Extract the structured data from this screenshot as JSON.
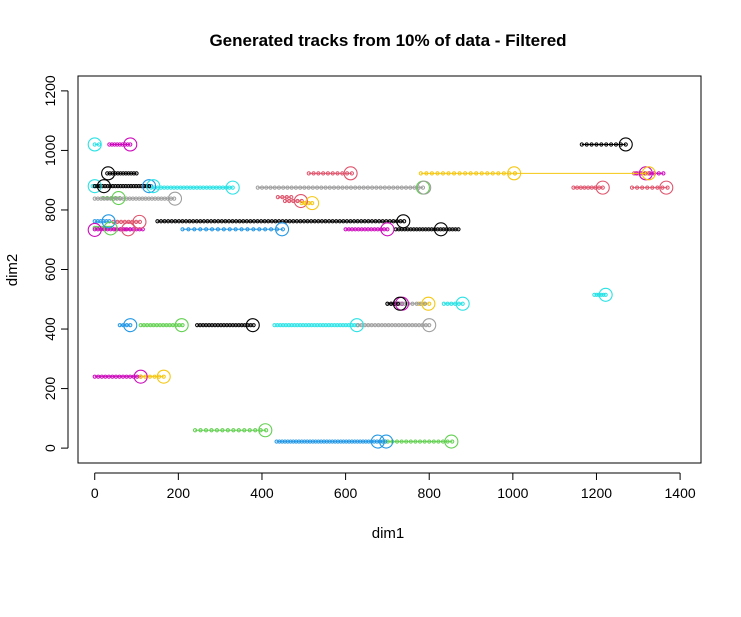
{
  "chart_data": {
    "type": "scatter",
    "title": "Generated tracks from 10% of data - Filtered",
    "xlabel": "dim1",
    "ylabel": "dim2",
    "xlim": [
      -40,
      1450
    ],
    "ylim": [
      -50,
      1250
    ],
    "xticks": [
      0,
      200,
      400,
      600,
      800,
      1000,
      1200,
      1400
    ],
    "yticks": [
      0,
      200,
      400,
      600,
      800,
      1000,
      1200
    ],
    "grid": false,
    "legend": "none",
    "tracks": [
      {
        "color": "#DF536B",
        "y": 923,
        "x": [
          512,
          615
        ],
        "n": 10
      },
      {
        "color": "#DF536B",
        "y": 843,
        "x": [
          438,
          470
        ],
        "n": 4
      },
      {
        "color": "#DF536B",
        "y": 830,
        "x": [
          455,
          495
        ],
        "n": 5
      },
      {
        "color": "#DF536B",
        "y": 875,
        "x": [
          1145,
          1215
        ],
        "n": 9
      },
      {
        "color": "#DF536B",
        "y": 875,
        "x": [
          1285,
          1370
        ],
        "n": 8
      },
      {
        "color": "#DF536B",
        "y": 923,
        "x": [
          1290,
          1325
        ],
        "n": 5
      },
      {
        "color": "#DF536B",
        "y": 760,
        "x": [
          45,
          108
        ],
        "n": 8
      },
      {
        "color": "#DF536B",
        "y": 735,
        "x": [
          50,
          85
        ],
        "n": 4
      },
      {
        "color": "#61D04F",
        "y": 60,
        "x": [
          240,
          410
        ],
        "n": 14
      },
      {
        "color": "#61D04F",
        "y": 22,
        "x": [
          690,
          855
        ],
        "n": 16
      },
      {
        "color": "#61D04F",
        "y": 413,
        "x": [
          110,
          210
        ],
        "n": 14
      },
      {
        "color": "#61D04F",
        "y": 740,
        "x": [
          0,
          40
        ],
        "n": 8
      },
      {
        "color": "#61D04F",
        "y": 840,
        "x": [
          20,
          60
        ],
        "n": 5
      },
      {
        "color": "#2297E6",
        "y": 22,
        "x": [
          435,
          695
        ],
        "n": 40
      },
      {
        "color": "#2297E6",
        "y": 735,
        "x": [
          210,
          450
        ],
        "n": 18
      },
      {
        "color": "#2297E6",
        "y": 762,
        "x": [
          0,
          35
        ],
        "n": 6
      },
      {
        "color": "#2297E6",
        "y": 413,
        "x": [
          60,
          85
        ],
        "n": 4
      },
      {
        "color": "#2297E6",
        "y": 880,
        "x": [
          118,
          135
        ],
        "n": 3
      },
      {
        "color": "#28E2E5",
        "y": 1020,
        "x": [
          0,
          10
        ],
        "n": 2
      },
      {
        "color": "#28E2E5",
        "y": 875,
        "x": [
          135,
          330
        ],
        "n": 26
      },
      {
        "color": "#28E2E5",
        "y": 413,
        "x": [
          430,
          628
        ],
        "n": 30
      },
      {
        "color": "#28E2E5",
        "y": 485,
        "x": [
          835,
          880
        ],
        "n": 6
      },
      {
        "color": "#28E2E5",
        "y": 515,
        "x": [
          1195,
          1222
        ],
        "n": 6
      },
      {
        "color": "#28E2E5",
        "y": 880,
        "x": [
          -5,
          10
        ],
        "n": 3
      },
      {
        "color": "#CD0BBC",
        "y": 1020,
        "x": [
          35,
          85
        ],
        "n": 9
      },
      {
        "color": "#CD0BBC",
        "y": 240,
        "x": [
          0,
          110
        ],
        "n": 14
      },
      {
        "color": "#CD0BBC",
        "y": 735,
        "x": [
          600,
          700
        ],
        "n": 14
      },
      {
        "color": "#CD0BBC",
        "y": 485,
        "x": [
          710,
          735
        ],
        "n": 5
      },
      {
        "color": "#CD0BBC",
        "y": 735,
        "x": [
          0,
          115
        ],
        "n": 16
      },
      {
        "color": "#CD0BBC",
        "y": 923,
        "x": [
          1295,
          1360
        ],
        "n": 7
      },
      {
        "color": "#F5C710",
        "y": 923,
        "x": [
          780,
          1005
        ],
        "n": 18
      },
      {
        "color": "#F5C710",
        "y": 923,
        "x": [
          1005,
          1320
        ],
        "n": 2
      },
      {
        "color": "#F5C710",
        "y": 240,
        "x": [
          110,
          165
        ],
        "n": 6
      },
      {
        "color": "#F5C710",
        "y": 823,
        "x": [
          495,
          520
        ],
        "n": 4
      },
      {
        "color": "#F5C710",
        "y": 485,
        "x": [
          775,
          800
        ],
        "n": 3
      },
      {
        "color": "#9E9E9E",
        "y": 875,
        "x": [
          390,
          785
        ],
        "n": 40
      },
      {
        "color": "#9E9E9E",
        "y": 413,
        "x": [
          630,
          800
        ],
        "n": 22
      },
      {
        "color": "#9E9E9E",
        "y": 838,
        "x": [
          0,
          190
        ],
        "n": 26
      },
      {
        "color": "#9E9E9E",
        "y": 485,
        "x": [
          700,
          790
        ],
        "n": 10
      },
      {
        "color": "#000000",
        "y": 1020,
        "x": [
          1165,
          1270
        ],
        "n": 10
      },
      {
        "color": "#000000",
        "y": 923,
        "x": [
          30,
          100
        ],
        "n": 12
      },
      {
        "color": "#000000",
        "y": 880,
        "x": [
          0,
          130
        ],
        "n": 22
      },
      {
        "color": "#000000",
        "y": 762,
        "x": [
          150,
          740
        ],
        "n": 70
      },
      {
        "color": "#000000",
        "y": 735,
        "x": [
          720,
          870
        ],
        "n": 22
      },
      {
        "color": "#000000",
        "y": 413,
        "x": [
          245,
          380
        ],
        "n": 20
      },
      {
        "color": "#000000",
        "y": 485,
        "x": [
          700,
          725
        ],
        "n": 4
      }
    ],
    "endpoints": [
      {
        "color": "#DF536B",
        "x": 612,
        "y": 923
      },
      {
        "color": "#DF536B",
        "x": 1215,
        "y": 875
      },
      {
        "color": "#DF536B",
        "x": 1367,
        "y": 875
      },
      {
        "color": "#DF536B",
        "x": 107,
        "y": 760
      },
      {
        "color": "#DF536B",
        "x": 80,
        "y": 735
      },
      {
        "color": "#DF536B",
        "x": 493,
        "y": 830
      },
      {
        "color": "#61D04F",
        "x": 408,
        "y": 60
      },
      {
        "color": "#61D04F",
        "x": 853,
        "y": 22
      },
      {
        "color": "#61D04F",
        "x": 208,
        "y": 413
      },
      {
        "color": "#61D04F",
        "x": 785,
        "y": 875
      },
      {
        "color": "#61D04F",
        "x": 38,
        "y": 738
      },
      {
        "color": "#61D04F",
        "x": 57,
        "y": 840
      },
      {
        "color": "#2297E6",
        "x": 677,
        "y": 22
      },
      {
        "color": "#2297E6",
        "x": 697,
        "y": 22
      },
      {
        "color": "#2297E6",
        "x": 448,
        "y": 735
      },
      {
        "color": "#2297E6",
        "x": 33,
        "y": 762
      },
      {
        "color": "#2297E6",
        "x": 85,
        "y": 413
      },
      {
        "color": "#2297E6",
        "x": 130,
        "y": 880
      },
      {
        "color": "#28E2E5",
        "x": 0,
        "y": 1020
      },
      {
        "color": "#28E2E5",
        "x": 330,
        "y": 875
      },
      {
        "color": "#28E2E5",
        "x": 627,
        "y": 413
      },
      {
        "color": "#28E2E5",
        "x": 880,
        "y": 485
      },
      {
        "color": "#28E2E5",
        "x": 1222,
        "y": 515
      },
      {
        "color": "#28E2E5",
        "x": 0,
        "y": 880
      },
      {
        "color": "#28E2E5",
        "x": 140,
        "y": 880
      },
      {
        "color": "#CD0BBC",
        "x": 85,
        "y": 1020
      },
      {
        "color": "#CD0BBC",
        "x": 110,
        "y": 240
      },
      {
        "color": "#CD0BBC",
        "x": 700,
        "y": 735
      },
      {
        "color": "#CD0BBC",
        "x": 735,
        "y": 485
      },
      {
        "color": "#CD0BBC",
        "x": 0,
        "y": 733
      },
      {
        "color": "#CD0BBC",
        "x": 1318,
        "y": 923
      },
      {
        "color": "#F5C710",
        "x": 1003,
        "y": 923
      },
      {
        "color": "#F5C710",
        "x": 1325,
        "y": 923
      },
      {
        "color": "#F5C710",
        "x": 165,
        "y": 240
      },
      {
        "color": "#F5C710",
        "x": 520,
        "y": 823
      },
      {
        "color": "#F5C710",
        "x": 798,
        "y": 485
      },
      {
        "color": "#9E9E9E",
        "x": 800,
        "y": 413
      },
      {
        "color": "#9E9E9E",
        "x": 192,
        "y": 838
      },
      {
        "color": "#9E9E9E",
        "x": 788,
        "y": 875
      },
      {
        "color": "#000000",
        "x": 1270,
        "y": 1020
      },
      {
        "color": "#000000",
        "x": 32,
        "y": 923
      },
      {
        "color": "#000000",
        "x": 22,
        "y": 880
      },
      {
        "color": "#000000",
        "x": 738,
        "y": 762
      },
      {
        "color": "#000000",
        "x": 828,
        "y": 735
      },
      {
        "color": "#000000",
        "x": 378,
        "y": 413
      },
      {
        "color": "#000000",
        "x": 730,
        "y": 485
      }
    ]
  }
}
